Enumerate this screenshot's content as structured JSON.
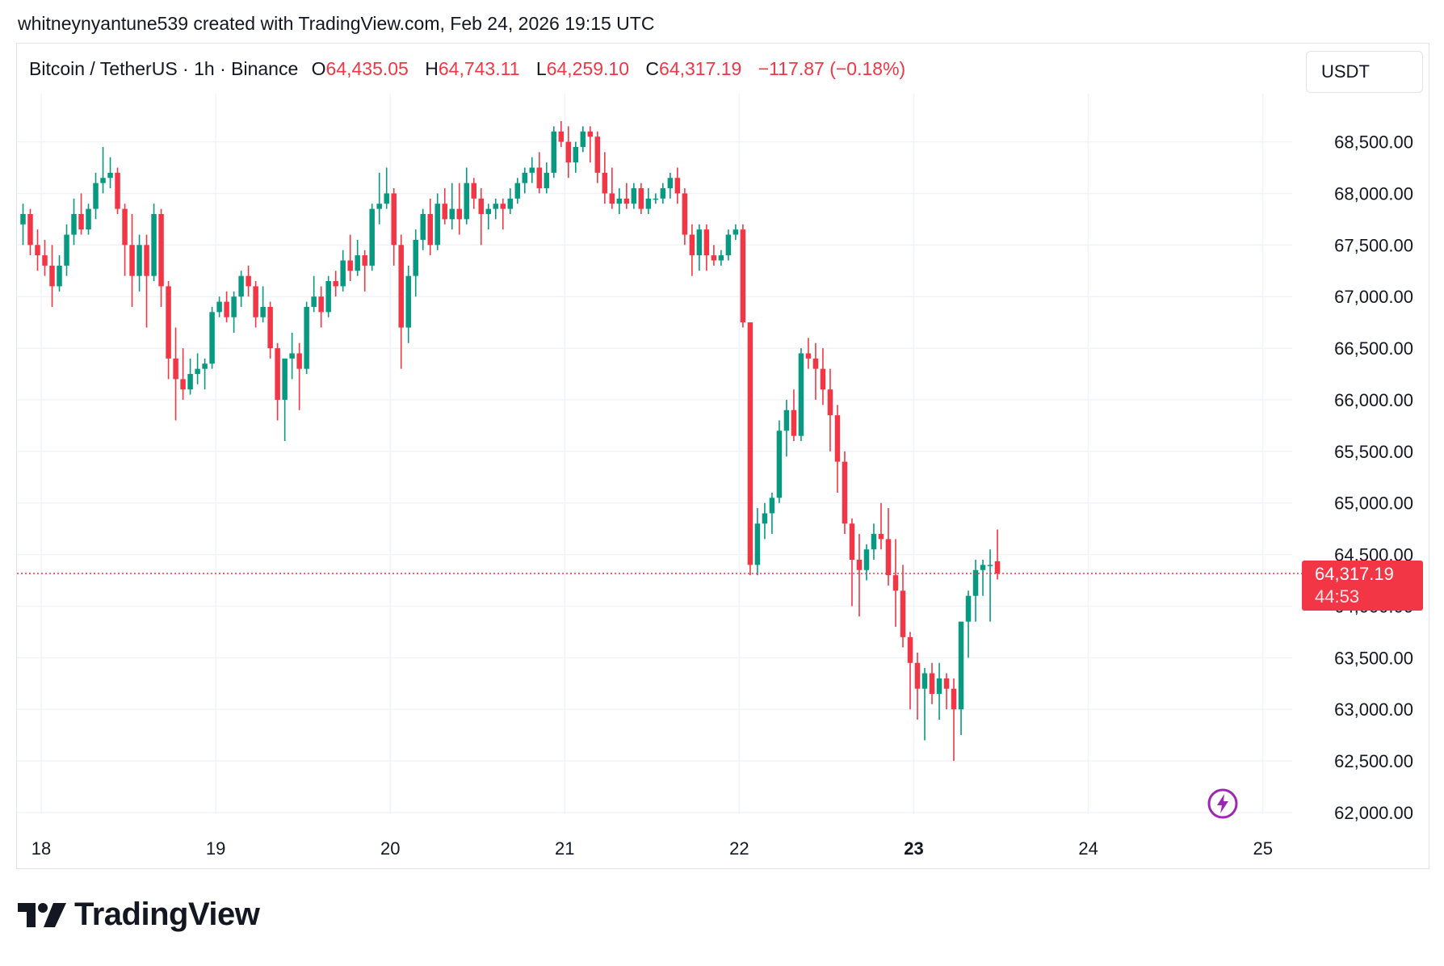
{
  "caption": "whitneynyantune539 created with TradingView.com, Feb 24, 2026 19:15 UTC",
  "legend": {
    "symbol": "Bitcoin / TetherUS · 1h · Binance",
    "o_label": "O",
    "o_value": "64,435.05",
    "h_label": "H",
    "h_value": "64,743.11",
    "l_label": "L",
    "l_value": "64,259.10",
    "c_label": "C",
    "c_value": "64,317.19",
    "change": "−117.87 (−0.18%)"
  },
  "currency_button": "USDT",
  "brand": "TradingView",
  "price_tag": {
    "price": "64,317.19",
    "countdown": "44:53"
  },
  "colors": {
    "up": "#089981",
    "down": "#f23645",
    "grid": "#f0f3fa",
    "text": "#131722",
    "bolt": "#9c27b0"
  },
  "icons": {
    "logo": "tradingview-logo-icon",
    "alert": "lightning-bolt-icon"
  },
  "chart_data": {
    "type": "candlestick",
    "interval": "1h",
    "ylim": [
      62000,
      69000
    ],
    "y_ticks": [
      62000,
      62500,
      63000,
      63500,
      64000,
      64500,
      65000,
      65500,
      66000,
      66500,
      67000,
      67500,
      68000,
      68500
    ],
    "y_tick_labels": [
      "62,000.00",
      "62,500.00",
      "63,000.00",
      "63,500.00",
      "64,000.00",
      "64,500.00",
      "65,000.00",
      "65,500.00",
      "66,000.00",
      "66,500.00",
      "67,000.00",
      "67,500.00",
      "68,000.00",
      "68,500.00"
    ],
    "x_ticks": [
      {
        "label": "18",
        "day": 18,
        "bold": false
      },
      {
        "label": "19",
        "day": 19,
        "bold": false
      },
      {
        "label": "20",
        "day": 20,
        "bold": false
      },
      {
        "label": "21",
        "day": 21,
        "bold": false
      },
      {
        "label": "22",
        "day": 22,
        "bold": false
      },
      {
        "label": "23",
        "day": 23,
        "bold": true
      },
      {
        "label": "24",
        "day": 24,
        "bold": false
      },
      {
        "label": "25",
        "day": 25,
        "bold": false
      }
    ],
    "first_candle_day": 17.875,
    "candles_per_day": 24,
    "last_price": 64317.19,
    "ohlc": [
      [
        67700,
        67900,
        67500,
        67800
      ],
      [
        67800,
        67850,
        67400,
        67500
      ],
      [
        67500,
        67650,
        67250,
        67400
      ],
      [
        67400,
        67550,
        67200,
        67300
      ],
      [
        67300,
        67500,
        66900,
        67100
      ],
      [
        67100,
        67400,
        67050,
        67300
      ],
      [
        67300,
        67700,
        67200,
        67600
      ],
      [
        67600,
        67950,
        67500,
        67800
      ],
      [
        67800,
        68000,
        67600,
        67650
      ],
      [
        67650,
        67900,
        67600,
        67850
      ],
      [
        67850,
        68200,
        67750,
        68100
      ],
      [
        68100,
        68450,
        68000,
        68150
      ],
      [
        68150,
        68350,
        68050,
        68200
      ],
      [
        68200,
        68250,
        67800,
        67850
      ],
      [
        67850,
        67900,
        67200,
        67500
      ],
      [
        67500,
        67800,
        66900,
        67200
      ],
      [
        67200,
        67600,
        67050,
        67500
      ],
      [
        67500,
        67600,
        66700,
        67200
      ],
      [
        67200,
        67900,
        67150,
        67800
      ],
      [
        67800,
        67850,
        66900,
        67100
      ],
      [
        67100,
        67150,
        66200,
        66400
      ],
      [
        66400,
        66700,
        65800,
        66200
      ],
      [
        66200,
        66500,
        66000,
        66100
      ],
      [
        66100,
        66400,
        66050,
        66250
      ],
      [
        66250,
        66450,
        66150,
        66300
      ],
      [
        66300,
        66400,
        66100,
        66350
      ],
      [
        66350,
        66900,
        66300,
        66850
      ],
      [
        66850,
        67000,
        66800,
        66950
      ],
      [
        66950,
        67050,
        66750,
        66800
      ],
      [
        66800,
        67050,
        66650,
        67000
      ],
      [
        67000,
        67250,
        66900,
        67200
      ],
      [
        67200,
        67300,
        67000,
        67100
      ],
      [
        67100,
        67150,
        66700,
        66800
      ],
      [
        66800,
        67100,
        66750,
        66900
      ],
      [
        66900,
        66950,
        66400,
        66500
      ],
      [
        66500,
        66550,
        65800,
        66000
      ],
      [
        66000,
        66350,
        65600,
        66400
      ],
      [
        66400,
        66650,
        66200,
        66450
      ],
      [
        66450,
        66550,
        65900,
        66300
      ],
      [
        66300,
        66950,
        66250,
        66900
      ],
      [
        66900,
        67200,
        66850,
        67000
      ],
      [
        67000,
        67100,
        66700,
        66850
      ],
      [
        66850,
        67200,
        66800,
        67150
      ],
      [
        67150,
        67250,
        67000,
        67100
      ],
      [
        67100,
        67450,
        67050,
        67350
      ],
      [
        67350,
        67600,
        67150,
        67250
      ],
      [
        67250,
        67550,
        67200,
        67400
      ],
      [
        67400,
        67450,
        67050,
        67300
      ],
      [
        67300,
        67900,
        67250,
        67850
      ],
      [
        67850,
        68200,
        67700,
        67900
      ],
      [
        67900,
        68250,
        67850,
        68000
      ],
      [
        68000,
        68050,
        67300,
        67500
      ],
      [
        67500,
        67600,
        66300,
        66700
      ],
      [
        66700,
        67300,
        66550,
        67200
      ],
      [
        67200,
        67650,
        67000,
        67550
      ],
      [
        67550,
        67850,
        67450,
        67800
      ],
      [
        67800,
        67950,
        67400,
        67500
      ],
      [
        67500,
        68000,
        67450,
        67900
      ],
      [
        67900,
        68050,
        67700,
        67750
      ],
      [
        67750,
        68100,
        67650,
        67850
      ],
      [
        67850,
        68100,
        67600,
        67750
      ],
      [
        67750,
        68250,
        67700,
        68100
      ],
      [
        68100,
        68150,
        67850,
        67950
      ],
      [
        67950,
        68050,
        67500,
        67800
      ],
      [
        67800,
        67900,
        67650,
        67850
      ],
      [
        67850,
        67950,
        67750,
        67900
      ],
      [
        67900,
        67950,
        67650,
        67850
      ],
      [
        67850,
        68050,
        67800,
        67950
      ],
      [
        67950,
        68150,
        67900,
        68100
      ],
      [
        68100,
        68250,
        68000,
        68200
      ],
      [
        68200,
        68350,
        68100,
        68250
      ],
      [
        68250,
        68400,
        68000,
        68050
      ],
      [
        68050,
        68300,
        68000,
        68200
      ],
      [
        68200,
        68650,
        68150,
        68600
      ],
      [
        68600,
        68700,
        68450,
        68500
      ],
      [
        68500,
        68650,
        68150,
        68300
      ],
      [
        68300,
        68500,
        68200,
        68450
      ],
      [
        68450,
        68650,
        68400,
        68600
      ],
      [
        68600,
        68650,
        68300,
        68550
      ],
      [
        68550,
        68600,
        68100,
        68200
      ],
      [
        68200,
        68400,
        67900,
        68000
      ],
      [
        68000,
        68250,
        67850,
        67900
      ],
      [
        67900,
        68050,
        67800,
        67950
      ],
      [
        67950,
        68100,
        67850,
        67900
      ],
      [
        67900,
        68100,
        67850,
        68050
      ],
      [
        68050,
        68100,
        67800,
        67850
      ],
      [
        67850,
        68050,
        67800,
        67950
      ],
      [
        67950,
        68000,
        67900,
        67950
      ],
      [
        67950,
        68100,
        67900,
        68050
      ],
      [
        68050,
        68200,
        67950,
        68150
      ],
      [
        68150,
        68250,
        67900,
        68000
      ],
      [
        68000,
        68050,
        67500,
        67600
      ],
      [
        67600,
        67700,
        67200,
        67400
      ],
      [
        67400,
        67700,
        67250,
        67650
      ],
      [
        67650,
        67700,
        67250,
        67400
      ],
      [
        67400,
        67500,
        67300,
        67350
      ],
      [
        67350,
        67450,
        67300,
        67400
      ],
      [
        67400,
        67650,
        67350,
        67600
      ],
      [
        67600,
        67700,
        67550,
        67650
      ],
      [
        67650,
        67700,
        66700,
        66750
      ],
      [
        66750,
        66750,
        64300,
        64400
      ],
      [
        64400,
        64950,
        64300,
        64800
      ],
      [
        64800,
        65000,
        64650,
        64900
      ],
      [
        64900,
        65100,
        64700,
        65050
      ],
      [
        65050,
        65800,
        65000,
        65700
      ],
      [
        65700,
        66000,
        65450,
        65900
      ],
      [
        65900,
        66100,
        65600,
        65650
      ],
      [
        65650,
        66500,
        65600,
        66450
      ],
      [
        66450,
        66600,
        66300,
        66400
      ],
      [
        66400,
        66550,
        66000,
        66300
      ],
      [
        66300,
        66500,
        65950,
        66100
      ],
      [
        66100,
        66300,
        65500,
        65850
      ],
      [
        65850,
        65950,
        65100,
        65400
      ],
      [
        65400,
        65500,
        64700,
        64800
      ],
      [
        64800,
        64850,
        64000,
        64450
      ],
      [
        64450,
        64700,
        63900,
        64350
      ],
      [
        64350,
        64600,
        64250,
        64550
      ],
      [
        64550,
        64800,
        64450,
        64700
      ],
      [
        64700,
        65000,
        64550,
        64650
      ],
      [
        64650,
        64950,
        64200,
        64300
      ],
      [
        64300,
        64650,
        63800,
        64150
      ],
      [
        64150,
        64400,
        63600,
        63700
      ],
      [
        63700,
        63750,
        63000,
        63450
      ],
      [
        63450,
        63550,
        62900,
        63200
      ],
      [
        63200,
        63400,
        62700,
        63350
      ],
      [
        63350,
        63450,
        63050,
        63150
      ],
      [
        63150,
        63450,
        62900,
        63300
      ],
      [
        63300,
        63350,
        63000,
        63200
      ],
      [
        63200,
        63300,
        62500,
        63000
      ],
      [
        63000,
        63850,
        62750,
        63850
      ],
      [
        63850,
        64150,
        63500,
        64100
      ],
      [
        64100,
        64450,
        63850,
        64350
      ],
      [
        64350,
        64450,
        64100,
        64400
      ],
      [
        64400,
        64550,
        63850,
        64400
      ],
      [
        64435.05,
        64743.11,
        64259.1,
        64317.19
      ]
    ]
  }
}
